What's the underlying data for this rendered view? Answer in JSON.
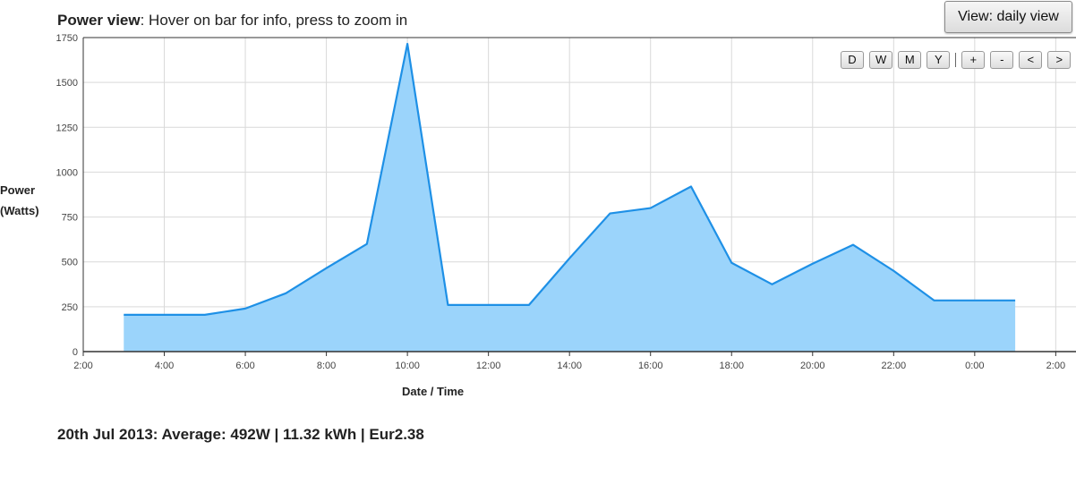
{
  "header": {
    "title_bold": "Power view",
    "title_rest": ": Hover on bar for info, press to zoom in"
  },
  "view_button": {
    "label": "View: daily view"
  },
  "zoom_controls": {
    "range_buttons": [
      "D",
      "W",
      "M",
      "Y"
    ],
    "nav_buttons": [
      "+",
      "-",
      "<",
      ">"
    ]
  },
  "summary": "20th Jul 2013: Average: 492W | 11.32 kWh | Eur2.38",
  "colors": {
    "fill": "#9bd4fb",
    "line": "#1e90e6",
    "grid": "#d9d9d9",
    "axis": "#333333"
  },
  "chart_data": {
    "type": "area",
    "xlabel": "Date / Time",
    "ylabel_lines": [
      "Power",
      "(Watts)"
    ],
    "x_ticks": [
      "2:00",
      "4:00",
      "6:00",
      "8:00",
      "10:00",
      "12:00",
      "14:00",
      "16:00",
      "18:00",
      "20:00",
      "22:00",
      "0:00",
      "2:00"
    ],
    "y_ticks": [
      0,
      250,
      500,
      750,
      1000,
      1250,
      1500,
      1750
    ],
    "ylim": [
      0,
      1750
    ],
    "xlim_hours": [
      2,
      26.5
    ],
    "grid": true,
    "series": [
      {
        "x_hours": [
          3,
          4,
          5,
          6,
          7,
          8,
          9,
          10,
          11,
          12,
          13,
          14,
          15,
          16,
          17,
          18,
          19,
          20,
          21,
          22,
          23,
          24,
          25
        ],
        "x": [
          "3:00",
          "4:00",
          "5:00",
          "6:00",
          "7:00",
          "8:00",
          "9:00",
          "10:00",
          "11:00",
          "12:00",
          "13:00",
          "14:00",
          "15:00",
          "16:00",
          "17:00",
          "18:00",
          "19:00",
          "20:00",
          "21:00",
          "22:00",
          "23:00",
          "0:00",
          "1:00"
        ],
        "values": [
          205,
          205,
          205,
          240,
          325,
          465,
          600,
          1715,
          260,
          260,
          260,
          520,
          770,
          800,
          920,
          495,
          375,
          490,
          595,
          450,
          285,
          285,
          285
        ]
      }
    ]
  }
}
